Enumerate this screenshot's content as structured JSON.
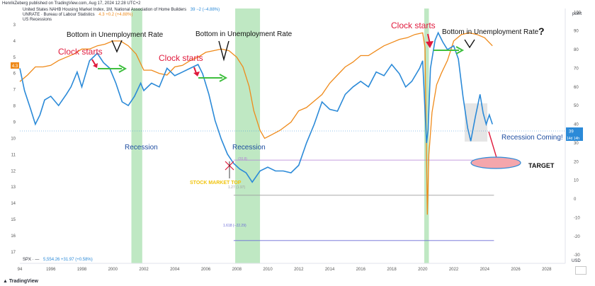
{
  "header": {
    "published_by": "HenrikZeberg published on TradingView.com, Aug 17, 2024 12:28 UTC+2",
    "series1_title": "United States NAHB Housing Market Index, 1M, National Association of Home Builders",
    "series1_value": "39  −2 (−4.88%)",
    "series2_title": "UNRATE · Bureau of Labour Statistics",
    "series2_value": "4.3  +0.2 (+4.88%)",
    "series3_title": "US Recessions",
    "right_axis_title": "point"
  },
  "footer": {
    "spx_label": "SPX · —",
    "spx_value": "5,554.26  +31.97 (+0.58%)",
    "currency": "USD",
    "logo_text": "TradingView"
  },
  "colors": {
    "nahb": "#2b8ad8",
    "unrate": "#ef8a1a",
    "recession": "#b8e6bc",
    "clock": "#e01a3c",
    "arrow_green": "#3fbf3f",
    "recession_text": "#1f4ea0",
    "fib_purple": "#b27fd6",
    "fib_gray": "#9e9e9e",
    "fib_blue": "#6b6bd6",
    "target_fill": "#f4a6ac",
    "stock_top": "#f1c40f"
  },
  "chart_data": {
    "type": "line",
    "x_ticks": [
      "94",
      "1996",
      "1998",
      "2000",
      "2002",
      "2004",
      "2006",
      "2008",
      "2010",
      "2012",
      "2014",
      "2016",
      "2018",
      "2020",
      "2022",
      "2024",
      "2026",
      "2028"
    ],
    "x_range": [
      1994,
      2029.2
    ],
    "left_axis": {
      "ticks": [
        "3",
        "4",
        "5",
        "6",
        "7",
        "8",
        "9",
        "10",
        "11",
        "12",
        "13",
        "14",
        "15",
        "16",
        "17"
      ],
      "range": [
        2,
        17.7
      ],
      "inverted": true,
      "current_label": "4.3"
    },
    "right_axis": {
      "ticks": [
        "100",
        "90",
        "80",
        "70",
        "60",
        "50",
        "40",
        "30",
        "20",
        "10",
        "0",
        "-10",
        "-20",
        "-30"
      ],
      "range": [
        -34.5,
        102
      ],
      "current_label": "39",
      "countdown": "14d 14h"
    },
    "recessions": [
      [
        2001.2,
        2001.9
      ],
      [
        2007.9,
        2009.5
      ],
      [
        2020.1,
        2020.4
      ]
    ],
    "series": [
      {
        "name": "United States NAHB Housing Market Index",
        "axis": "right",
        "x": [
          1994.0,
          1994.3,
          1994.7,
          1995.0,
          1995.3,
          1995.6,
          1996.0,
          1996.5,
          1997.0,
          1997.3,
          1997.7,
          1998.0,
          1998.5,
          1999.0,
          1999.4,
          1999.8,
          2000.2,
          2000.6,
          2001.0,
          2001.4,
          2001.8,
          2002.0,
          2002.5,
          2003.0,
          2003.5,
          2004.0,
          2004.5,
          2005.0,
          2005.5,
          2005.8,
          2006.2,
          2006.6,
          2007.0,
          2007.4,
          2007.8,
          2008.2,
          2008.6,
          2009.0,
          2009.5,
          2010.0,
          2010.5,
          2011.0,
          2011.5,
          2012.0,
          2012.5,
          2013.0,
          2013.5,
          2014.0,
          2014.5,
          2015.0,
          2015.5,
          2016.0,
          2016.5,
          2017.0,
          2017.5,
          2018.0,
          2018.5,
          2018.9,
          2019.3,
          2019.8,
          2020.0,
          2020.25,
          2020.35,
          2020.5,
          2020.8,
          2021.0,
          2021.3,
          2021.6,
          2022.0,
          2022.3,
          2022.6,
          2022.9,
          2023.1,
          2023.4,
          2023.7,
          2023.9,
          2024.1,
          2024.3,
          2024.5
        ],
        "values": [
          70,
          58,
          48,
          40,
          45,
          53,
          55,
          50,
          56,
          60,
          68,
          60,
          74,
          78,
          73,
          70,
          62,
          52,
          50,
          55,
          62,
          58,
          62,
          60,
          70,
          66,
          68,
          70,
          72,
          67,
          56,
          42,
          32,
          24,
          19,
          16,
          14,
          9,
          15,
          17,
          15,
          15,
          14,
          18,
          30,
          40,
          52,
          48,
          47,
          56,
          60,
          63,
          60,
          68,
          66,
          72,
          67,
          60,
          63,
          70,
          74,
          30,
          37,
          70,
          85,
          89,
          84,
          80,
          82,
          75,
          55,
          38,
          31,
          44,
          56,
          46,
          40,
          45,
          40
        ]
      },
      {
        "name": "UNRATE",
        "axis": "left",
        "x": [
          1994.0,
          1994.5,
          1995.0,
          1995.5,
          1996.0,
          1996.5,
          1997.0,
          1997.5,
          1998.0,
          1998.5,
          1999.0,
          1999.5,
          2000.0,
          2000.5,
          2001.0,
          2001.5,
          2002.0,
          2002.5,
          2003.0,
          2003.5,
          2004.0,
          2004.5,
          2005.0,
          2005.5,
          2006.0,
          2006.5,
          2007.0,
          2007.5,
          2008.0,
          2008.4,
          2008.8,
          2009.1,
          2009.5,
          2009.8,
          2010.2,
          2010.8,
          2011.5,
          2012.0,
          2012.5,
          2013.0,
          2013.5,
          2014.0,
          2014.5,
          2015.0,
          2015.5,
          2016.0,
          2016.5,
          2017.0,
          2017.5,
          2018.0,
          2018.5,
          2019.0,
          2019.5,
          2020.0,
          2020.15,
          2020.3,
          2020.4,
          2020.6,
          2020.9,
          2021.2,
          2021.6,
          2022.0,
          2022.5,
          2023.0,
          2023.5,
          2024.0,
          2024.3,
          2024.5
        ],
        "values": [
          6.5,
          6.1,
          5.6,
          5.6,
          5.5,
          5.2,
          5.0,
          4.8,
          4.5,
          4.5,
          4.3,
          4.2,
          4.0,
          4.0,
          4.3,
          4.8,
          5.8,
          5.8,
          6.0,
          6.1,
          5.6,
          5.5,
          5.2,
          5.0,
          4.7,
          4.6,
          4.5,
          4.6,
          5.0,
          5.6,
          6.8,
          8.3,
          9.5,
          10.0,
          9.8,
          9.5,
          9.0,
          8.3,
          8.1,
          7.7,
          7.3,
          6.6,
          6.1,
          5.6,
          5.3,
          4.9,
          4.9,
          4.6,
          4.3,
          4.1,
          3.9,
          3.8,
          3.6,
          3.5,
          4.4,
          14.7,
          11.0,
          8.4,
          6.7,
          6.0,
          5.2,
          4.0,
          3.6,
          3.5,
          3.6,
          3.8,
          4.1,
          4.3
        ]
      }
    ],
    "spx_tooltip": "20.8",
    "fib_levels": [
      {
        "label": "(20.8)",
        "value": 20.8
      },
      {
        "label": "1.27 (1.97)",
        "value": 1.97
      },
      {
        "label": "1.618 (−22.29)",
        "value": -22.29
      }
    ],
    "annotations": {
      "bottom_unemployment": "Bottom in Unemployment Rate",
      "clock_starts": "Clock starts",
      "recession": "Recession",
      "stock_market_top": "STOCK MARKET TOP",
      "recession_coming": "Recession Coming!",
      "target": "TARGET",
      "question": "?"
    }
  }
}
